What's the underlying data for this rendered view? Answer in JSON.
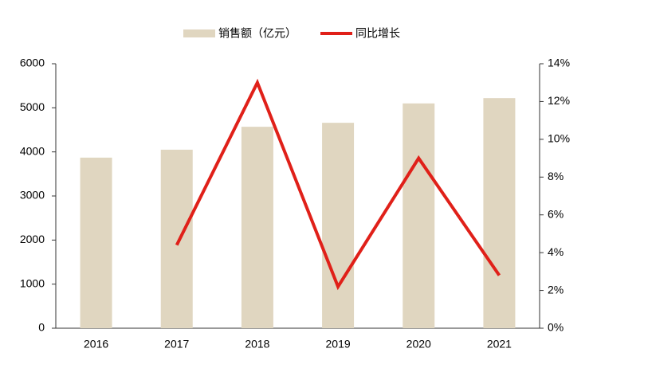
{
  "chart_data": {
    "type": "bar-line",
    "categories": [
      "2016",
      "2017",
      "2018",
      "2019",
      "2020",
      "2021"
    ],
    "series": [
      {
        "name": "销售额（亿元）",
        "type": "bar",
        "color": "#e0d6c0",
        "values": [
          3870,
          4050,
          4570,
          4660,
          5100,
          5220
        ]
      },
      {
        "name": "同比增长",
        "type": "line",
        "axis": "y2",
        "color": "#e02019",
        "values": [
          null,
          4.4,
          13.0,
          2.2,
          9.0,
          2.8
        ]
      }
    ],
    "ylim": [
      0,
      6000
    ],
    "yticks": [
      0,
      1000,
      2000,
      3000,
      4000,
      5000,
      6000
    ],
    "y2lim": [
      0,
      14
    ],
    "y2ticks": [
      {
        "value": 0,
        "label": "0%"
      },
      {
        "value": 2,
        "label": "2%"
      },
      {
        "value": 4,
        "label": "4%"
      },
      {
        "value": 6,
        "label": "6%"
      },
      {
        "value": 8,
        "label": "8%"
      },
      {
        "value": 10,
        "label": "10%"
      },
      {
        "value": 12,
        "label": "12%"
      },
      {
        "value": 14,
        "label": "14%"
      }
    ],
    "legend": "top"
  }
}
